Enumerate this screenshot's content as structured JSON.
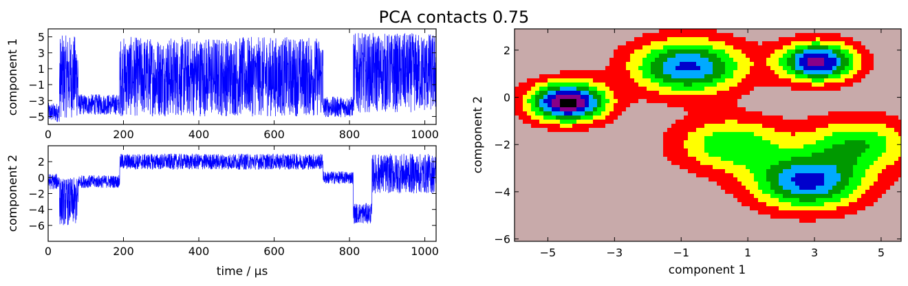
{
  "figure": {
    "title": "PCA contacts 0.75"
  },
  "chart_data": [
    {
      "type": "line",
      "ylabel": "component 1",
      "xlabel": "",
      "xlim": [
        0,
        1030
      ],
      "ylim": [
        -6,
        6
      ],
      "x_ticks": [
        "0",
        "200",
        "400",
        "600",
        "800",
        "1000"
      ],
      "y_ticks": [
        "5",
        "3",
        "1",
        "−1",
        "−3",
        "−5"
      ],
      "series_color": "#0000ff",
      "states": [
        {
          "x_start": 0,
          "x_end": 30,
          "center": -4.5,
          "spread": 1.2
        },
        {
          "x_start": 30,
          "x_end": 80,
          "center": 0.0,
          "spread": 5.2
        },
        {
          "x_start": 80,
          "x_end": 190,
          "center": -3.5,
          "spread": 1.3
        },
        {
          "x_start": 190,
          "x_end": 730,
          "center": 0.0,
          "spread": 5.0
        },
        {
          "x_start": 730,
          "x_end": 810,
          "center": -3.8,
          "spread": 1.3
        },
        {
          "x_start": 810,
          "x_end": 1030,
          "center": 0.5,
          "spread": 5.0
        }
      ]
    },
    {
      "type": "line",
      "ylabel": "component 2",
      "xlabel": "time / μs",
      "xlim": [
        0,
        1030
      ],
      "ylim": [
        -8,
        4
      ],
      "x_ticks": [
        "0",
        "200",
        "400",
        "600",
        "800",
        "1000"
      ],
      "y_ticks": [
        "2",
        "0",
        "−2",
        "−4",
        "−6"
      ],
      "series_color": "#0000ff",
      "states": [
        {
          "x_start": 0,
          "x_end": 30,
          "center": -0.5,
          "spread": 1.0
        },
        {
          "x_start": 30,
          "x_end": 80,
          "center": -3.0,
          "spread": 3.0
        },
        {
          "x_start": 80,
          "x_end": 190,
          "center": -0.5,
          "spread": 0.8
        },
        {
          "x_start": 190,
          "x_end": 730,
          "center": 2.0,
          "spread": 1.0
        },
        {
          "x_start": 730,
          "x_end": 810,
          "center": 0.0,
          "spread": 0.8
        },
        {
          "x_start": 810,
          "x_end": 860,
          "center": -4.5,
          "spread": 1.3
        },
        {
          "x_start": 860,
          "x_end": 1030,
          "center": 0.5,
          "spread": 2.5
        }
      ]
    },
    {
      "type": "heatmap",
      "subtype": "filled-contour",
      "xlabel": "component 1",
      "ylabel": "component 2",
      "xlim": [
        -6,
        5.6
      ],
      "ylim": [
        -6.1,
        2.9
      ],
      "x_ticks": [
        "−5",
        "−3",
        "−1",
        "1",
        "3",
        "5"
      ],
      "y_ticks": [
        "2",
        "0",
        "−2",
        "−4",
        "−6"
      ],
      "background_color": "#c8aaaa",
      "colormap": [
        "#ff0000",
        "#ffff00",
        "#00ff00",
        "#009900",
        "#00aaff",
        "#0000cc",
        "#880088",
        "#000000"
      ],
      "basins": [
        {
          "x": -4.4,
          "y": -0.2,
          "depth": 7
        },
        {
          "x": 3.1,
          "y": 1.5,
          "depth": 6
        },
        {
          "x": -0.8,
          "y": 1.3,
          "depth": 5
        },
        {
          "x": 2.8,
          "y": -3.6,
          "depth": 5
        },
        {
          "x": 0.5,
          "y": -2.0,
          "depth": 3
        },
        {
          "x": 4.3,
          "y": -2.0,
          "depth": 3
        }
      ]
    }
  ]
}
